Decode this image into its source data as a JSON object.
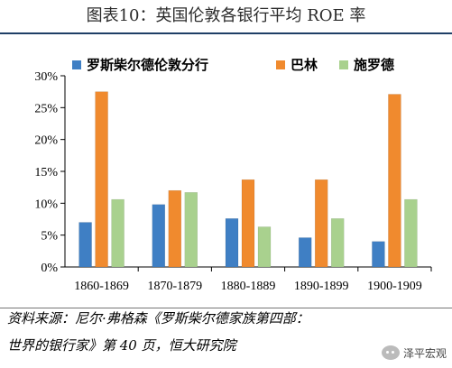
{
  "title": "图表10：英国伦敦各银行平均 ROE 率",
  "source_line1": "资料来源：尼尔·弗格森《罗斯柴尔德家族第四部：",
  "source_line2": "世界的银行家》第 40 页，恒大研究院",
  "watermark": "泽平宏观",
  "colors": {
    "rothschild_london": "#3f7fc4",
    "barings": "#f08a2e",
    "schroders": "#a9d18e",
    "title_rule": "#1f3f66"
  },
  "chart_data": {
    "type": "bar",
    "categories": [
      "1860-1869",
      "1870-1879",
      "1880-1889",
      "1890-1899",
      "1900-1909"
    ],
    "series": [
      {
        "name": "罗斯柴尔德伦敦分行",
        "values": [
          7.0,
          9.8,
          7.6,
          4.6,
          4.0
        ]
      },
      {
        "name": "巴林",
        "values": [
          27.5,
          12.0,
          13.7,
          13.7,
          27.1
        ]
      },
      {
        "name": "施罗德",
        "values": [
          10.6,
          11.7,
          6.3,
          7.6,
          10.6
        ]
      }
    ],
    "ylim": [
      0,
      30
    ],
    "yticks": [
      "0%",
      "5%",
      "10%",
      "15%",
      "20%",
      "25%",
      "30%"
    ],
    "legend_position": "top"
  }
}
